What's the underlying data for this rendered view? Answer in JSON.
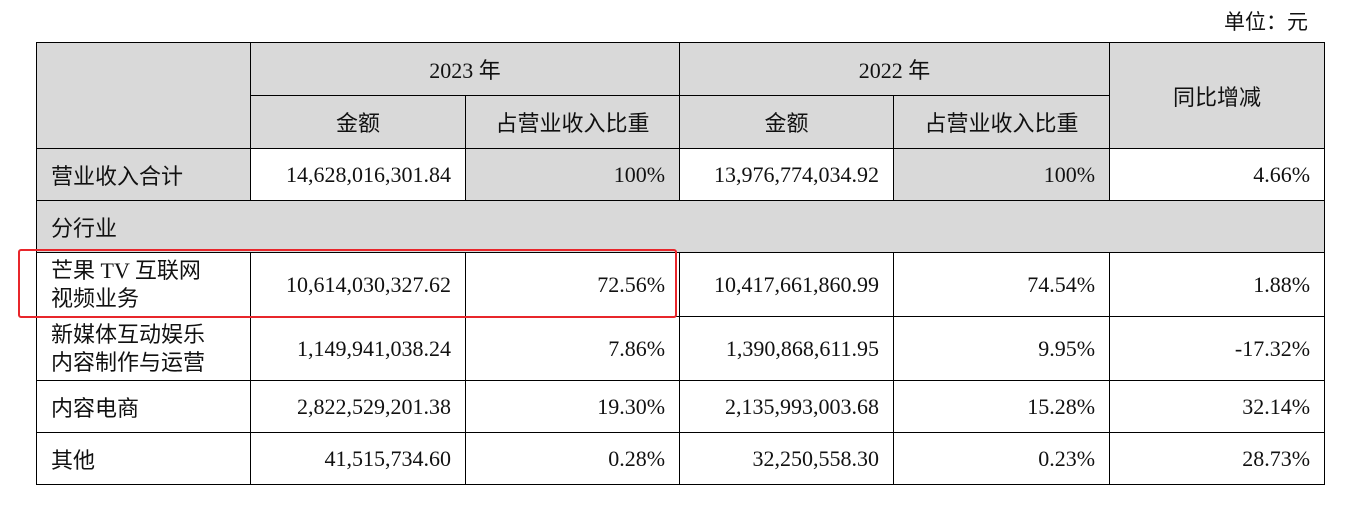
{
  "unit_label": "单位：元",
  "header": {
    "year1": "2023 年",
    "year2": "2022 年",
    "yoy": "同比增减",
    "amount": "金额",
    "ratio": "占营业收入比重"
  },
  "total": {
    "label": "营业收入合计",
    "amt2023": "14,628,016,301.84",
    "pct2023": "100%",
    "amt2022": "13,976,774,034.92",
    "pct2022": "100%",
    "yoy": "4.66%"
  },
  "section_label": "分行业",
  "rows": [
    {
      "label_line1": "芒果 TV 互联网",
      "label_line2": "视频业务",
      "amt2023": "10,614,030,327.62",
      "pct2023": "72.56%",
      "amt2022": "10,417,661,860.99",
      "pct2022": "74.54%",
      "yoy": "1.88%"
    },
    {
      "label_line1": "新媒体互动娱乐",
      "label_line2": "内容制作与运营",
      "amt2023": "1,149,941,038.24",
      "pct2023": "7.86%",
      "amt2022": "1,390,868,611.95",
      "pct2022": "9.95%",
      "yoy": "-17.32%"
    },
    {
      "label": "内容电商",
      "amt2023": "2,822,529,201.38",
      "pct2023": "19.30%",
      "amt2022": "2,135,993,003.68",
      "pct2022": "15.28%",
      "yoy": "32.14%"
    },
    {
      "label": "其他",
      "amt2023": "41,515,734.60",
      "pct2023": "0.28%",
      "amt2022": "32,250,558.30",
      "pct2022": "0.23%",
      "yoy": "28.73%"
    }
  ],
  "colors": {
    "header_bg": "#d9d9d9",
    "highlight_border": "#e8262b"
  }
}
